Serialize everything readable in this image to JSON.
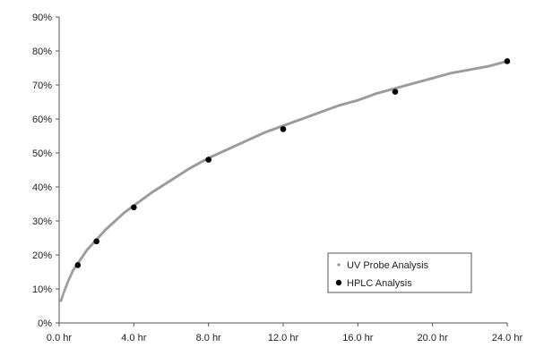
{
  "chart_data": {
    "type": "scatter",
    "title": "",
    "xlabel": "",
    "ylabel": "",
    "xlim": [
      0,
      24
    ],
    "ylim": [
      0,
      90
    ],
    "x_ticks": [
      0,
      4,
      8,
      12,
      16,
      20,
      24
    ],
    "x_tick_labels": [
      "0.0 hr",
      "4.0 hr",
      "8.0 hr",
      "12.0 hr",
      "16.0 hr",
      "20.0 hr",
      "24.0 hr"
    ],
    "y_ticks": [
      0,
      10,
      20,
      30,
      40,
      50,
      60,
      70,
      80,
      90
    ],
    "y_tick_labels": [
      "0%",
      "10%",
      "20%",
      "30%",
      "40%",
      "50%",
      "60%",
      "70%",
      "80%",
      "90%"
    ],
    "grid": false,
    "legend_position": "bottom-right",
    "series": [
      {
        "name": "UV Probe Analysis",
        "marker": "small-gray-dot",
        "color": "#9a9a9a",
        "x": [
          0.1,
          0.25,
          0.5,
          0.75,
          1,
          1.5,
          2,
          2.5,
          3,
          3.5,
          4,
          5,
          6,
          7,
          8,
          9,
          10,
          11,
          12,
          13,
          14,
          15,
          16,
          17,
          18,
          19,
          20,
          21,
          22,
          23,
          24
        ],
        "y": [
          6.5,
          9,
          12.5,
          15.5,
          17.5,
          21.5,
          24.5,
          27.5,
          30,
          32.5,
          34.5,
          38.5,
          42,
          45.5,
          48.5,
          51,
          53.5,
          56,
          58,
          60,
          62,
          64,
          65.5,
          67.5,
          69,
          70.5,
          72,
          73.5,
          74.5,
          75.5,
          77
        ]
      },
      {
        "name": "HPLC Analysis",
        "marker": "black-dot",
        "color": "#000000",
        "x": [
          1,
          2,
          4,
          8,
          12,
          18,
          24
        ],
        "y": [
          17,
          24,
          34,
          48,
          57,
          68,
          77
        ]
      }
    ]
  }
}
